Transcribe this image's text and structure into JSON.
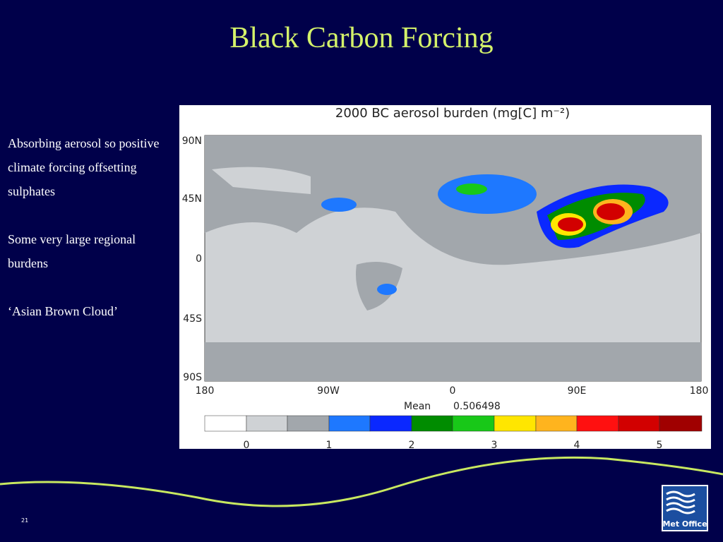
{
  "title": "Black Carbon Forcing",
  "bullets": [
    "Absorbing aerosol so positive climate forcing offsetting sulphates",
    "Some very large regional burdens",
    "‘Asian Brown Cloud’"
  ],
  "figure": {
    "title": "2000 BC aerosol burden (mg[C] m⁻²)",
    "lat_labels": [
      "90N",
      "45N",
      "0",
      "45S",
      "90S"
    ],
    "lon_labels": [
      "180",
      "90W",
      "0",
      "90E",
      "180"
    ],
    "mean_label": "Mean",
    "mean_value": "0.506498",
    "colorbar_labels": [
      "0",
      "1",
      "2",
      "3",
      "4",
      "5"
    ]
  },
  "slide_number": "21",
  "logo": "Met Office"
}
